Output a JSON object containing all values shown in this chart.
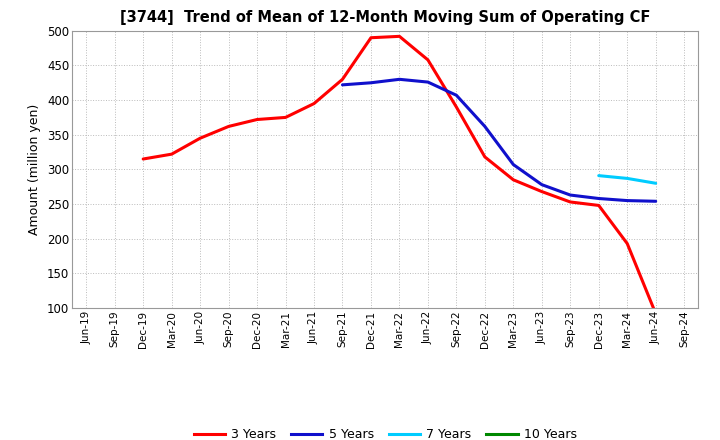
{
  "title": "[3744]  Trend of Mean of 12-Month Moving Sum of Operating CF",
  "ylabel": "Amount (million yen)",
  "ylim": [
    100,
    500
  ],
  "yticks": [
    100,
    150,
    200,
    250,
    300,
    350,
    400,
    450,
    500
  ],
  "x_labels": [
    "Jun-19",
    "Sep-19",
    "Dec-19",
    "Mar-20",
    "Jun-20",
    "Sep-20",
    "Dec-20",
    "Mar-21",
    "Jun-21",
    "Sep-21",
    "Dec-21",
    "Mar-22",
    "Jun-22",
    "Sep-22",
    "Dec-22",
    "Mar-23",
    "Jun-23",
    "Sep-23",
    "Dec-23",
    "Mar-24",
    "Jun-24",
    "Sep-24"
  ],
  "series_3y": {
    "label": "3 Years",
    "color": "#FF0000",
    "values": [
      null,
      null,
      315,
      322,
      345,
      362,
      372,
      375,
      395,
      430,
      490,
      492,
      458,
      390,
      318,
      285,
      268,
      253,
      248,
      193,
      92,
      null
    ]
  },
  "series_5y": {
    "label": "5 Years",
    "color": "#1010CC",
    "values": [
      null,
      null,
      null,
      null,
      null,
      null,
      null,
      null,
      null,
      422,
      425,
      430,
      426,
      407,
      362,
      307,
      278,
      263,
      258,
      255,
      254,
      null
    ]
  },
  "series_7y": {
    "label": "7 Years",
    "color": "#00CCFF",
    "values": [
      null,
      null,
      null,
      null,
      null,
      null,
      null,
      null,
      null,
      null,
      null,
      null,
      null,
      null,
      null,
      null,
      null,
      null,
      291,
      287,
      280,
      null
    ]
  },
  "series_10y": {
    "label": "10 Years",
    "color": "#008800",
    "values": [
      null,
      null,
      null,
      null,
      null,
      null,
      null,
      null,
      null,
      null,
      null,
      null,
      null,
      null,
      null,
      null,
      null,
      null,
      null,
      null,
      null,
      null
    ]
  },
  "background_color": "#FFFFFF",
  "grid_color": "#BBBBBB",
  "line_width": 2.2
}
